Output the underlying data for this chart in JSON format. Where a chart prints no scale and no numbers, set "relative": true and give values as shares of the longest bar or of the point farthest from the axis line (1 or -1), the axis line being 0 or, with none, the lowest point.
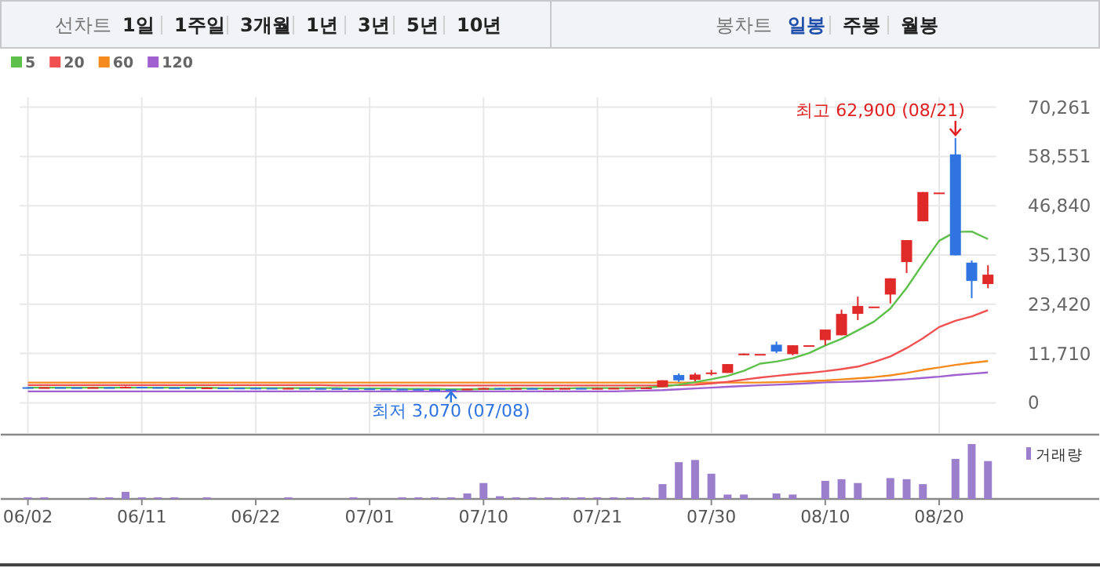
{
  "chart_data": [
    {
      "type": "other",
      "annotations": [
        "선차트",
        "1일",
        "1주일",
        "3개월",
        "1년",
        "3년",
        "5년",
        "10년",
        "봉차트",
        "일봉",
        "주봉",
        "월봉"
      ]
    },
    {
      "type": "candlestick",
      "categories": [
        "06/02",
        null,
        null,
        null,
        null,
        null,
        null,
        "06/11",
        null,
        null,
        null,
        null,
        null,
        null,
        "06/22",
        null,
        null,
        null,
        null,
        null,
        null,
        "07/01",
        null,
        null,
        null,
        null,
        null,
        null,
        "07/10",
        null,
        null,
        null,
        null,
        null,
        null,
        "07/21",
        null,
        null,
        null,
        null,
        null,
        null,
        "07/30",
        null,
        null,
        null,
        null,
        null,
        null,
        "08/10",
        null,
        null,
        null,
        null,
        null,
        null,
        "08/20",
        null,
        null,
        null
      ],
      "ohlc": [
        [
          3700,
          3750,
          3640,
          3660
        ],
        [
          3660,
          3720,
          3600,
          3700
        ],
        [
          3700,
          3760,
          3650,
          3680
        ],
        [
          3680,
          3700,
          3620,
          3640
        ],
        [
          3640,
          3720,
          3600,
          3700
        ],
        [
          3700,
          3780,
          3650,
          3680
        ],
        [
          3690,
          3900,
          3650,
          3800
        ],
        [
          3800,
          3820,
          3700,
          3720
        ],
        [
          3720,
          3760,
          3640,
          3660
        ],
        [
          3660,
          3700,
          3600,
          3650
        ],
        [
          3650,
          3680,
          3580,
          3600
        ],
        [
          3600,
          3660,
          3560,
          3620
        ],
        [
          3620,
          3640,
          3560,
          3580
        ],
        [
          3580,
          3620,
          3540,
          3560
        ],
        [
          3560,
          3600,
          3500,
          3540
        ],
        [
          3540,
          3580,
          3480,
          3500
        ],
        [
          3500,
          3560,
          3460,
          3520
        ],
        [
          3520,
          3540,
          3460,
          3480
        ],
        [
          3480,
          3520,
          3440,
          3460
        ],
        [
          3460,
          3500,
          3420,
          3450
        ],
        [
          3450,
          3480,
          3380,
          3400
        ],
        [
          3400,
          3440,
          3340,
          3360
        ],
        [
          3360,
          3400,
          3300,
          3320
        ],
        [
          3320,
          3360,
          3260,
          3280
        ],
        [
          3280,
          3320,
          3200,
          3240
        ],
        [
          3240,
          3280,
          3160,
          3200
        ],
        [
          3200,
          3230,
          3070,
          3120
        ],
        [
          3120,
          3380,
          3100,
          3340
        ],
        [
          3340,
          3560,
          3300,
          3500
        ],
        [
          3500,
          3520,
          3420,
          3450
        ],
        [
          3450,
          3500,
          3400,
          3480
        ],
        [
          3480,
          3520,
          3420,
          3440
        ],
        [
          3440,
          3480,
          3400,
          3460
        ],
        [
          3460,
          3520,
          3420,
          3500
        ],
        [
          3500,
          3540,
          3440,
          3460
        ],
        [
          3460,
          3520,
          3420,
          3500
        ],
        [
          3500,
          3560,
          3460,
          3540
        ],
        [
          3540,
          3600,
          3500,
          3560
        ],
        [
          3560,
          3640,
          3520,
          3620
        ],
        [
          3700,
          5350,
          3700,
          5350
        ],
        [
          6590,
          6960,
          4970,
          5340
        ],
        [
          5470,
          7090,
          5100,
          6710
        ],
        [
          7000,
          7800,
          6500,
          7200
        ],
        [
          7090,
          9200,
          7090,
          9200
        ],
        [
          11300,
          11700,
          11300,
          11700
        ],
        [
          11600,
          11600,
          11600,
          11600
        ],
        [
          13800,
          14540,
          11810,
          12180
        ],
        [
          11560,
          13670,
          11300,
          13670
        ],
        [
          13670,
          13670,
          13670,
          13670
        ],
        [
          14900,
          17400,
          13670,
          17400
        ],
        [
          16040,
          22130,
          16040,
          21130
        ],
        [
          21130,
          25230,
          19640,
          23000
        ],
        [
          22870,
          22870,
          22870,
          22870
        ],
        [
          25730,
          29580,
          23620,
          29580
        ],
        [
          33440,
          38660,
          30830,
          38660
        ],
        [
          43130,
          50090,
          43130,
          50090
        ],
        [
          49970,
          49970,
          49970,
          49970
        ],
        [
          59040,
          62900,
          35050,
          35050
        ],
        [
          33310,
          33810,
          24860,
          28960
        ],
        [
          28220,
          32690,
          27220,
          30450
        ]
      ],
      "series": [
        {
          "type": "line",
          "name": "5",
          "color": "#5cc04a",
          "values": [
            3600,
            3600,
            3600,
            3600,
            3600,
            3600,
            3600,
            3600,
            3600,
            3600,
            3600,
            3600,
            3500,
            3500,
            3500,
            3500,
            3500,
            3500,
            3500,
            3500,
            3400,
            3400,
            3400,
            3300,
            3300,
            3300,
            3200,
            3200,
            3300,
            3300,
            3400,
            3400,
            3400,
            3400,
            3500,
            3500,
            3500,
            3500,
            3600,
            3900,
            4300,
            4900,
            5600,
            6400,
            7600,
            9300,
            9800,
            10600,
            11800,
            13600,
            15200,
            17200,
            19300,
            22400,
            27300,
            33000,
            38500,
            40600,
            40700,
            38900
          ]
        },
        {
          "type": "line",
          "name": "20",
          "color": "#f05050",
          "values": [
            4200,
            4200,
            4200,
            4200,
            4200,
            4200,
            4200,
            4200,
            4200,
            4200,
            4200,
            4200,
            4200,
            4200,
            4200,
            4200,
            4200,
            4200,
            4200,
            4100,
            4100,
            4100,
            4100,
            4100,
            4100,
            4100,
            4100,
            4100,
            4100,
            4100,
            4100,
            4100,
            4100,
            4100,
            4100,
            4100,
            4100,
            4100,
            4100,
            4100,
            4200,
            4300,
            4600,
            5000,
            5500,
            6000,
            6400,
            6800,
            7100,
            7500,
            8000,
            8600,
            9700,
            11000,
            13000,
            15300,
            18000,
            19500,
            20500,
            22000
          ]
        },
        {
          "type": "line",
          "name": "60",
          "color": "#f58a1f",
          "values": [
            4800,
            4800,
            4800,
            4800,
            4800,
            4800,
            4800,
            4800,
            4800,
            4800,
            4800,
            4800,
            4800,
            4800,
            4800,
            4800,
            4800,
            4800,
            4800,
            4800,
            4800,
            4800,
            4800,
            4800,
            4800,
            4800,
            4800,
            4800,
            4800,
            4800,
            4800,
            4800,
            4800,
            4800,
            4800,
            4800,
            4800,
            4800,
            4800,
            4800,
            4800,
            4800,
            4800,
            4800,
            4800,
            4800,
            4900,
            5000,
            5150,
            5300,
            5550,
            5800,
            6100,
            6500,
            7100,
            7800,
            8400,
            9000,
            9500,
            9900
          ]
        },
        {
          "type": "line",
          "name": "120",
          "color": "#a060d0",
          "values": [
            2700,
            2700,
            2700,
            2700,
            2700,
            2700,
            2700,
            2700,
            2700,
            2700,
            2700,
            2700,
            2700,
            2700,
            2700,
            2700,
            2700,
            2700,
            2700,
            2700,
            2700,
            2700,
            2700,
            2700,
            2700,
            2700,
            2700,
            2700,
            2700,
            2700,
            2700,
            2700,
            2700,
            2700,
            2700,
            2700,
            2700,
            2800,
            2900,
            3000,
            3200,
            3400,
            3600,
            3800,
            4000,
            4150,
            4300,
            4450,
            4650,
            4850,
            4950,
            5050,
            5200,
            5400,
            5600,
            5900,
            6200,
            6600,
            6900,
            7200
          ]
        }
      ],
      "ylim": [
        0,
        70261
      ],
      "yticks": [
        0,
        {
          "value": 11710,
          "label": "11,710"
        },
        {
          "value": 23420,
          "label": "23,420"
        },
        {
          "value": 35130,
          "label": "35,130"
        },
        {
          "value": 46840,
          "label": "46,840"
        },
        {
          "value": 58551,
          "label": "58,551"
        },
        {
          "value": 70261,
          "label": "70,261"
        }
      ],
      "grid": true,
      "legend": "top left",
      "annotations": [
        "최고 62,900 (08/21)",
        "최저 3,070 (07/08)"
      ]
    },
    {
      "type": "bar",
      "relative": true,
      "legend": "right",
      "categories": [
        null,
        null,
        null,
        null,
        null,
        null,
        null,
        null,
        null,
        null,
        null,
        null,
        null,
        null,
        null,
        null,
        null,
        null,
        null,
        null,
        null,
        null,
        null,
        null,
        null,
        null,
        null,
        null,
        null,
        null,
        null,
        null,
        null,
        null,
        null,
        null,
        null,
        null,
        null,
        null,
        null,
        null,
        null,
        null,
        null,
        null,
        null,
        null,
        null,
        null,
        null,
        null,
        null,
        null,
        null,
        null,
        null,
        null,
        null,
        null
      ],
      "series": [
        {
          "name": "거래량",
          "color": "#9b7fcc",
          "values": [
            0.03,
            0.03,
            0,
            0,
            0.03,
            0.03,
            0.13,
            0.03,
            0.03,
            0.03,
            0,
            0.03,
            0,
            0,
            0,
            0,
            0.03,
            0,
            0,
            0,
            0.03,
            0,
            0,
            0.03,
            0.03,
            0.03,
            0.03,
            0.1,
            0.29,
            0.05,
            0.03,
            0.03,
            0.03,
            0.03,
            0.03,
            0.03,
            0.03,
            0.03,
            0.03,
            0.27,
            0.67,
            0.71,
            0.46,
            0.08,
            0.08,
            0,
            0.1,
            0.08,
            0,
            0.33,
            0.36,
            0.29,
            0,
            0.38,
            0.36,
            0.27,
            0,
            0.73,
            1,
            0.69
          ]
        }
      ]
    }
  ]
}
